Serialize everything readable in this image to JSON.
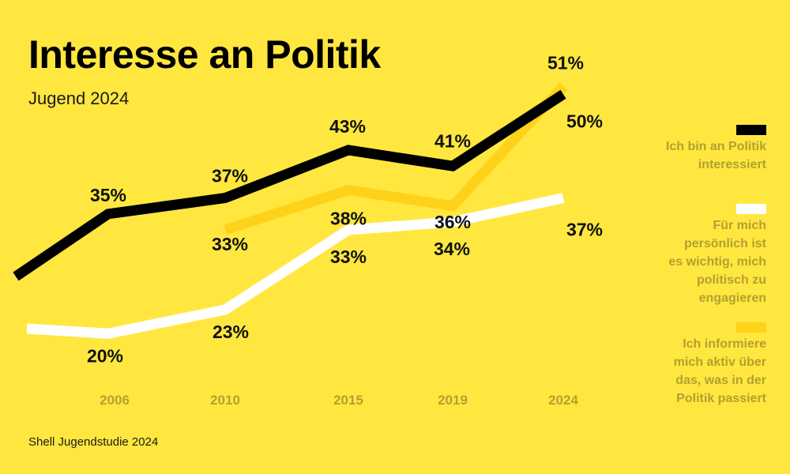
{
  "title": "Interesse an Politik",
  "subtitle": "Jugend 2024",
  "source": "Shell Jugendstudie 2024",
  "colors": {
    "background": "#FFE740",
    "series_interest": "#000000",
    "series_engagement": "#FFFFFF",
    "series_inform": "#FFD21A",
    "axis_text": "#B4A02E",
    "legend_text": "#B4A02E"
  },
  "legend": [
    {
      "label_lines": [
        "Ich bin an Politik",
        "interessiert"
      ],
      "color": "#000000"
    },
    {
      "label_lines": [
        "Für mich",
        "persönlich ist",
        "es wichtig, mich",
        "politisch zu",
        "engagieren"
      ],
      "color": "#FFFFFF"
    },
    {
      "label_lines": [
        "Ich informiere",
        "mich aktiv über",
        "das, was in der",
        "Politik passiert"
      ],
      "color": "#FFD21A"
    }
  ],
  "chart_data": {
    "type": "line",
    "title": "Interesse an Politik",
    "subtitle": "Jugend 2024",
    "x": [
      "2006",
      "2010",
      "2015",
      "2019",
      "2024"
    ],
    "ylim": [
      15,
      55
    ],
    "grid": false,
    "legend_position": "right",
    "series": [
      {
        "name": "Ich bin an Politik interessiert",
        "values": [
          35,
          37,
          43,
          41,
          50
        ],
        "labels": [
          "35%",
          "37%",
          "43%",
          "41%",
          "50%"
        ],
        "color": "#000000"
      },
      {
        "name": "Für mich persönlich ist es wichtig, mich politisch zu engagieren",
        "values": [
          20,
          23,
          33,
          34,
          37
        ],
        "labels": [
          "20%",
          "23%",
          "33%",
          "34%",
          "37%"
        ],
        "color": "#FFFFFF"
      },
      {
        "name": "Ich informiere mich aktiv über das, was in der Politik passiert",
        "values": [
          null,
          33,
          38,
          36,
          51
        ],
        "labels": [
          "",
          "33%",
          "38%",
          "36%",
          "51%"
        ],
        "color": "#FFD21A"
      }
    ]
  }
}
